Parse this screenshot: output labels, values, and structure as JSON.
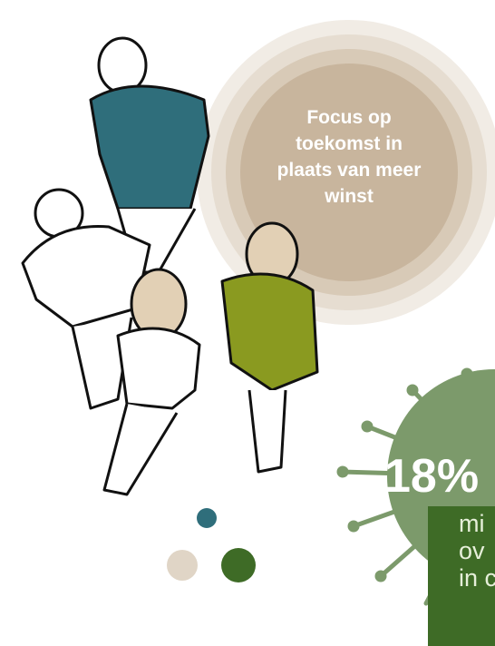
{
  "bubble": {
    "lines": [
      "Focus op",
      "toekomst in",
      "plaats van meer",
      "winst"
    ]
  },
  "stat": {
    "value_text": "18%",
    "lines": [
      "mi",
      "ov",
      "in c"
    ]
  }
}
